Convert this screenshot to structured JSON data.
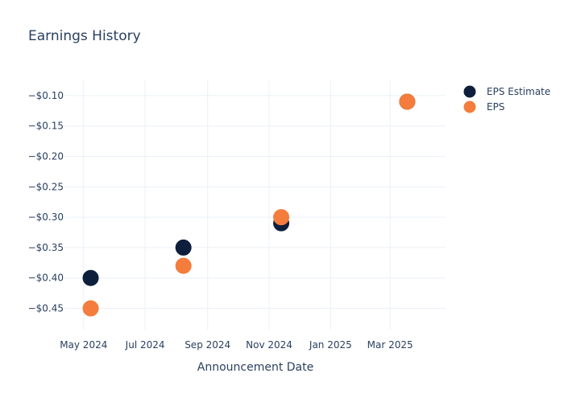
{
  "chart_data": {
    "type": "scatter",
    "title": "Earnings History",
    "xlabel": "Announcement Date",
    "ylabel": "",
    "x_ticks": [
      "May 2024",
      "Jul 2024",
      "Sep 2024",
      "Nov 2024",
      "Jan 2025",
      "Mar 2025"
    ],
    "y_ticks": [
      "−$0.10",
      "−$0.15",
      "−$0.20",
      "−$0.25",
      "−$0.30",
      "−$0.35",
      "−$0.40",
      "−$0.45"
    ],
    "ylim": [
      -0.485,
      -0.075
    ],
    "xlim": [
      "2024-04-12",
      "2025-04-25"
    ],
    "grid": true,
    "legend_position": "top-right",
    "series": [
      {
        "name": "EPS Estimate",
        "color": "#0d1f3c",
        "points": [
          {
            "x": "2024-05-08",
            "y": -0.4
          },
          {
            "x": "2024-08-08",
            "y": -0.35
          },
          {
            "x": "2024-11-13",
            "y": -0.31
          },
          {
            "x": "2025-03-18",
            "y": -0.11
          }
        ]
      },
      {
        "name": "EPS",
        "color": "#f47c3c",
        "points": [
          {
            "x": "2024-05-08",
            "y": -0.45
          },
          {
            "x": "2024-08-08",
            "y": -0.38
          },
          {
            "x": "2024-11-13",
            "y": -0.3
          },
          {
            "x": "2025-03-18",
            "y": -0.11
          }
        ]
      }
    ]
  }
}
